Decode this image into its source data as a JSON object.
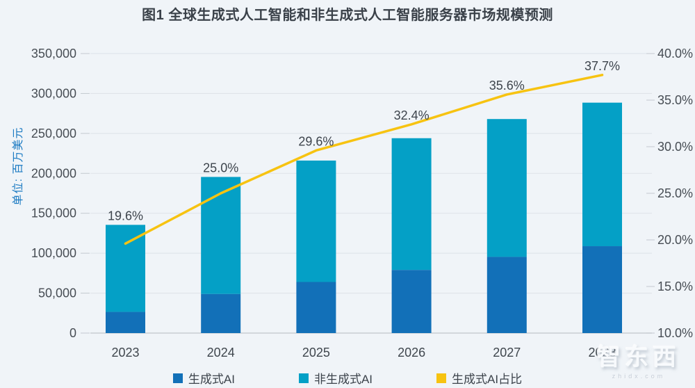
{
  "title": "图1 全球生成式人工智能和非生成式人工智能服务器市场规模预测",
  "watermark": {
    "text": "智东西",
    "subtext": "zhidx.com"
  },
  "chart_data": {
    "type": "bar",
    "subtype": "stacked-bar-with-line",
    "grid": true,
    "legend_position": "bottom",
    "categories": [
      "2023",
      "2024",
      "2025",
      "2026",
      "2027",
      "2028"
    ],
    "series": [
      {
        "name": "生成式AI",
        "color": "#1270b8",
        "values": [
          26500,
          48900,
          64000,
          79000,
          95400,
          108800
        ]
      },
      {
        "name": "非生成式AI",
        "color": "#04a0c6",
        "values": [
          109000,
          146600,
          152000,
          165000,
          172600,
          179700
        ]
      }
    ],
    "totals": [
      135500,
      195500,
      216000,
      244000,
      268000,
      288500
    ],
    "line_series": {
      "name": "生成式AI占比",
      "color": "#f7c311",
      "axis": "right",
      "values_pct": [
        19.6,
        25.0,
        29.6,
        32.4,
        35.6,
        37.7
      ],
      "labels": [
        "19.6%",
        "25.0%",
        "29.6%",
        "32.4%",
        "35.6%",
        "37.7%"
      ]
    },
    "left_axis": {
      "unit_label": "单位: 百万美元",
      "min": 0,
      "max": 350000,
      "step": 50000,
      "tick_labels": [
        "0",
        "50,000",
        "100,000",
        "150,000",
        "200,000",
        "250,000",
        "300,000",
        "350,000"
      ]
    },
    "right_axis": {
      "min": 10,
      "max": 40,
      "step": 5,
      "tick_labels": [
        "10.0%",
        "15.0%",
        "20.0%",
        "25.0%",
        "30.0%",
        "35.0%",
        "40.0%"
      ]
    }
  }
}
